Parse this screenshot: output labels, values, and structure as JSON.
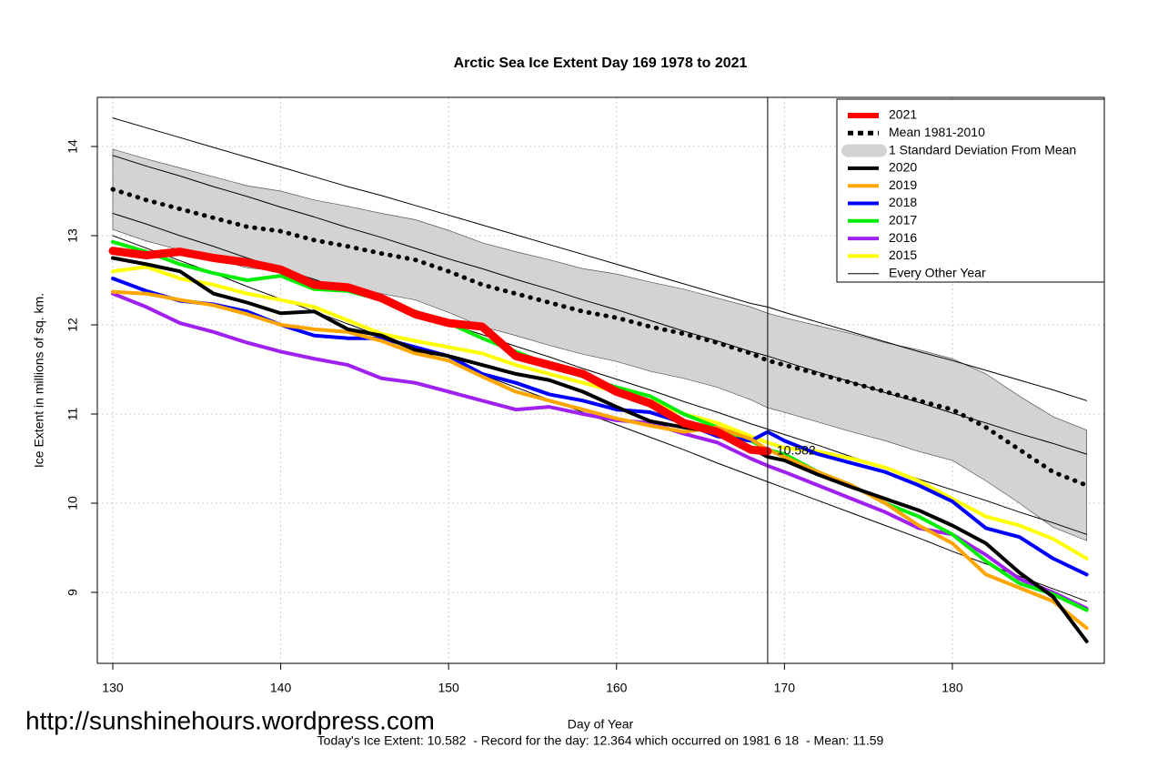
{
  "chart_data": {
    "type": "line",
    "title": "Arctic Sea Ice Extent Day 169 1978 to 2021",
    "xlabel": "Day of Year",
    "ylabel": "Ice Extent in millions of sq. km.",
    "footer": "Today's Ice Extent: 10.582  - Record for the day: 12.364 which occurred on 1981 6 18  - Mean: 11.59",
    "watermark": "http://sunshinehours.wordpress.com",
    "xlim": [
      129.08,
      189.05
    ],
    "ylim": [
      8.204,
      14.551
    ],
    "xticks": [
      130,
      140,
      150,
      160,
      170,
      180
    ],
    "yticks": [
      9,
      10,
      11,
      12,
      13,
      14
    ],
    "grid": true,
    "legend": "top-right",
    "vline": 169,
    "x": [
      130,
      132,
      134,
      136,
      138,
      140,
      142,
      144,
      146,
      148,
      150,
      152,
      154,
      156,
      158,
      160,
      162,
      164,
      166,
      168,
      169,
      170,
      172,
      174,
      176,
      178,
      180,
      182,
      184,
      186,
      188
    ],
    "series": [
      {
        "name": "2021",
        "color": "#ff0000",
        "width": 9,
        "value_label_index": 20,
        "values": [
          12.83,
          12.78,
          12.82,
          12.75,
          12.7,
          12.62,
          12.45,
          12.42,
          12.3,
          12.12,
          12.02,
          11.98,
          11.65,
          11.55,
          11.45,
          11.25,
          11.12,
          10.9,
          10.8,
          10.6,
          10.582,
          null,
          null,
          null,
          null,
          null,
          null,
          null,
          null,
          null,
          null
        ]
      },
      {
        "name": "Mean 1981-2010",
        "color": "#000000",
        "width": 5,
        "dotted": true,
        "values": [
          13.52,
          13.4,
          13.3,
          13.2,
          13.1,
          13.05,
          12.95,
          12.88,
          12.8,
          12.73,
          12.6,
          12.45,
          12.35,
          12.25,
          12.15,
          12.08,
          11.98,
          11.9,
          11.8,
          11.68,
          11.6,
          11.55,
          11.45,
          11.35,
          11.25,
          11.15,
          11.05,
          10.85,
          10.6,
          10.35,
          10.2
        ]
      },
      {
        "name": "2020",
        "color": "#000000",
        "width": 4,
        "values": [
          12.75,
          12.68,
          12.6,
          12.35,
          12.25,
          12.13,
          12.15,
          11.95,
          11.88,
          11.72,
          11.65,
          11.55,
          11.45,
          11.38,
          11.25,
          11.08,
          10.92,
          10.85,
          10.8,
          10.62,
          10.52,
          10.48,
          10.32,
          10.18,
          10.05,
          9.92,
          9.75,
          9.55,
          9.22,
          8.95,
          8.45
        ]
      },
      {
        "name": "2019",
        "color": "#ffa500",
        "width": 4,
        "values": [
          12.37,
          12.35,
          12.28,
          12.22,
          12.12,
          12.0,
          11.95,
          11.92,
          11.82,
          11.68,
          11.6,
          11.42,
          11.25,
          11.15,
          11.05,
          10.95,
          10.87,
          10.8,
          10.85,
          10.72,
          10.6,
          10.52,
          10.35,
          10.2,
          10.0,
          9.75,
          9.55,
          9.2,
          9.05,
          8.9,
          8.6
        ]
      },
      {
        "name": "2018",
        "color": "#0000ff",
        "width": 4,
        "values": [
          12.52,
          12.38,
          12.27,
          12.23,
          12.15,
          12.0,
          11.88,
          11.85,
          11.85,
          11.75,
          11.65,
          11.45,
          11.35,
          11.22,
          11.15,
          11.05,
          11.02,
          10.9,
          10.75,
          10.7,
          10.8,
          10.7,
          10.55,
          10.45,
          10.35,
          10.2,
          10.02,
          9.72,
          9.62,
          9.38,
          9.2
        ]
      },
      {
        "name": "2017",
        "color": "#00ee00",
        "width": 4,
        "values": [
          12.93,
          12.82,
          12.68,
          12.58,
          12.5,
          12.55,
          12.4,
          12.38,
          12.28,
          12.15,
          12.02,
          11.85,
          11.7,
          11.55,
          11.42,
          11.3,
          11.2,
          11.0,
          10.85,
          10.7,
          10.6,
          10.55,
          10.35,
          10.2,
          10.0,
          9.85,
          9.65,
          9.35,
          9.1,
          8.98,
          8.8
        ]
      },
      {
        "name": "2016",
        "color": "#a020f0",
        "width": 4,
        "values": [
          12.35,
          12.2,
          12.02,
          11.92,
          11.8,
          11.7,
          11.62,
          11.55,
          11.4,
          11.35,
          11.25,
          11.15,
          11.05,
          11.08,
          11.0,
          10.93,
          10.9,
          10.78,
          10.68,
          10.5,
          10.42,
          10.35,
          10.2,
          10.05,
          9.9,
          9.72,
          9.65,
          9.42,
          9.15,
          9.0,
          8.82
        ]
      },
      {
        "name": "2015",
        "color": "#ffff00",
        "width": 4,
        "values": [
          12.6,
          12.65,
          12.52,
          12.45,
          12.35,
          12.28,
          12.2,
          12.05,
          11.9,
          11.82,
          11.75,
          11.68,
          11.55,
          11.45,
          11.35,
          11.25,
          11.15,
          11.0,
          10.9,
          10.75,
          10.68,
          10.62,
          10.58,
          10.5,
          10.4,
          10.25,
          10.05,
          9.85,
          9.75,
          9.6,
          9.38
        ]
      }
    ],
    "band": {
      "name": "1 Standard Deviation From Mean",
      "color": "#d3d3d3",
      "upper": [
        13.97,
        13.86,
        13.76,
        13.66,
        13.56,
        13.5,
        13.4,
        13.33,
        13.25,
        13.18,
        13.06,
        12.92,
        12.82,
        12.73,
        12.63,
        12.57,
        12.48,
        12.4,
        12.3,
        12.2,
        12.13,
        12.08,
        11.99,
        11.9,
        11.8,
        11.72,
        11.62,
        11.45,
        11.2,
        10.97,
        10.82
      ],
      "lower": [
        13.07,
        12.94,
        12.84,
        12.74,
        12.64,
        12.6,
        12.5,
        12.43,
        12.35,
        12.28,
        12.14,
        11.98,
        11.88,
        11.77,
        11.67,
        11.59,
        11.48,
        11.4,
        11.3,
        11.16,
        11.07,
        11.02,
        10.91,
        10.8,
        10.7,
        10.58,
        10.48,
        10.25,
        10.0,
        9.73,
        9.58
      ]
    },
    "others": {
      "name": "Every Other Year",
      "color": "#000000",
      "lines": [
        [
          14.32,
          14.21,
          14.1,
          13.99,
          13.88,
          13.77,
          13.66,
          13.55,
          13.45,
          13.34,
          13.23,
          13.12,
          13.01,
          12.9,
          12.79,
          12.68,
          12.57,
          12.46,
          12.35,
          12.24,
          12.2,
          12.14,
          12.03,
          11.92,
          11.81,
          11.7,
          11.6,
          11.49,
          11.38,
          11.27,
          11.15
        ],
        [
          13.9,
          13.78,
          13.67,
          13.55,
          13.44,
          13.32,
          13.21,
          13.09,
          12.98,
          12.86,
          12.74,
          12.63,
          12.51,
          12.4,
          12.28,
          12.17,
          12.05,
          11.93,
          11.82,
          11.7,
          11.65,
          11.59,
          11.47,
          11.36,
          11.24,
          11.13,
          11.01,
          10.9,
          10.78,
          10.67,
          10.55
        ],
        [
          13.25,
          13.13,
          13.0,
          12.88,
          12.75,
          12.63,
          12.51,
          12.38,
          12.26,
          12.13,
          12.01,
          11.89,
          11.76,
          11.64,
          11.51,
          11.39,
          11.27,
          11.14,
          11.02,
          10.89,
          10.83,
          10.77,
          10.65,
          10.52,
          10.4,
          10.27,
          10.15,
          10.03,
          9.9,
          9.78,
          9.65
        ],
        [
          13.0,
          12.86,
          12.72,
          12.58,
          12.43,
          12.29,
          12.15,
          12.01,
          11.87,
          11.73,
          11.59,
          11.44,
          11.3,
          11.16,
          11.02,
          10.88,
          10.74,
          10.6,
          10.45,
          10.31,
          10.24,
          10.17,
          10.03,
          9.89,
          9.75,
          9.61,
          9.46,
          9.32,
          9.18,
          9.04,
          8.9
        ]
      ]
    }
  }
}
